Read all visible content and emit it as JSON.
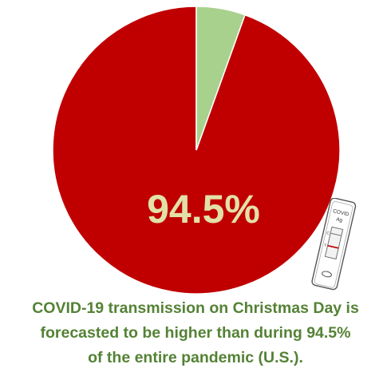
{
  "chart_data": {
    "type": "pie",
    "slices": [
      {
        "value": 94.5,
        "color": "#c00000"
      },
      {
        "value": 5.5,
        "color": "#a9d18e"
      }
    ],
    "data_label": "94.5%"
  },
  "colors": {
    "label": "#e2e0a8",
    "caption": "#548235",
    "slice_stroke": "#ffffff"
  },
  "caption": {
    "line1": "COVID-19 transmission on Christmas Day is",
    "line2": "forecasted to be higher than during 94.5%",
    "line3": "of the entire pandemic (U.S.)."
  },
  "test_kit": {
    "icon": "covid-antigen-test-icon",
    "label_line1": "COVID",
    "label_line2": "Ag",
    "c_mark": "C",
    "t_mark": "T"
  }
}
